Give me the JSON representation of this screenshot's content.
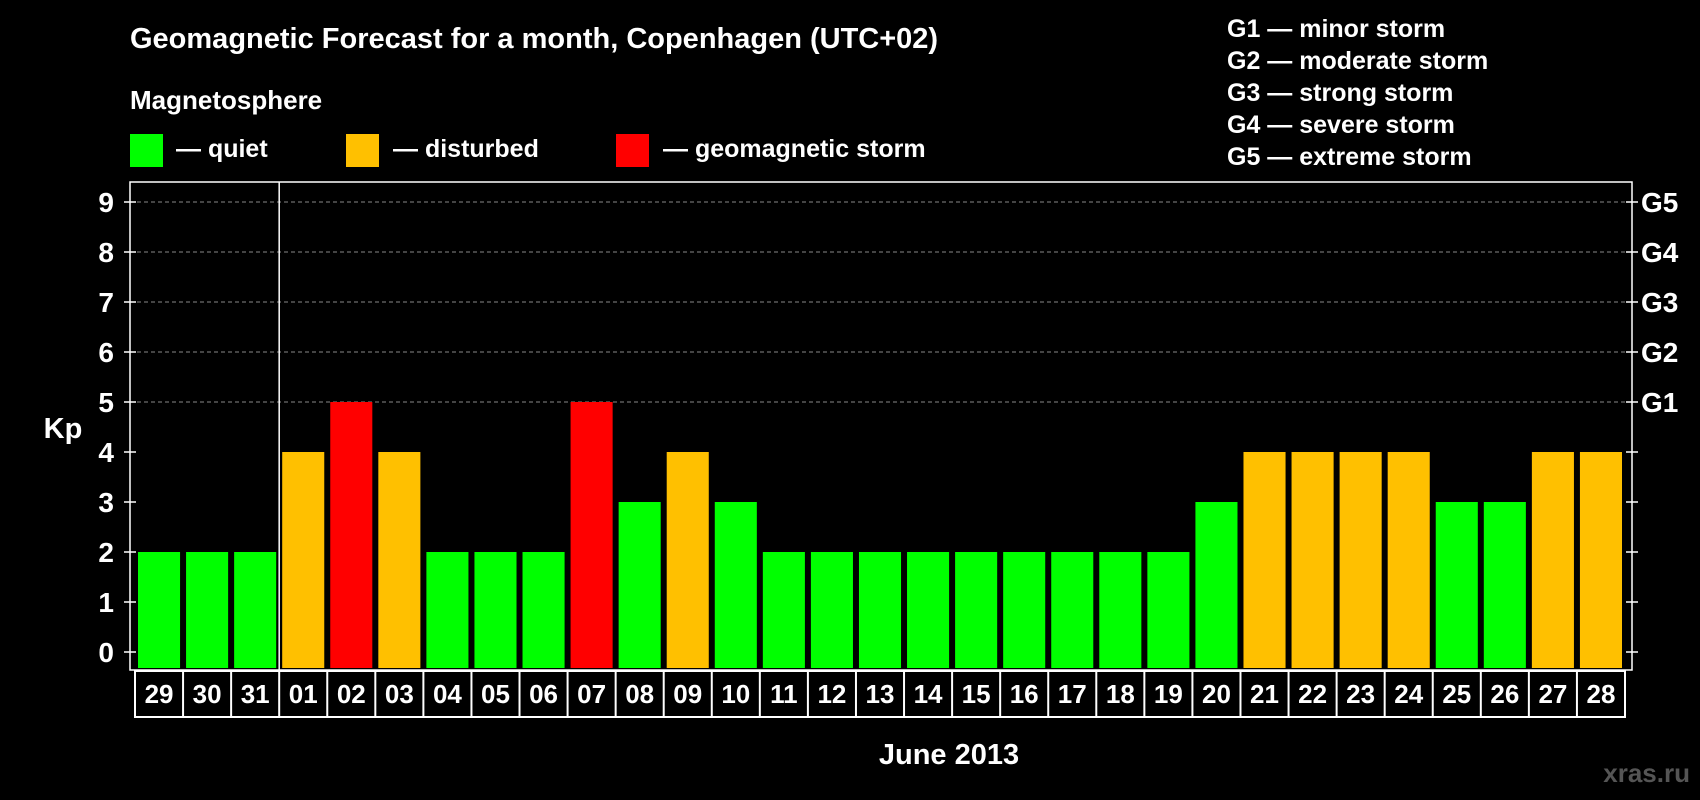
{
  "chart_data": {
    "type": "bar",
    "title": "Geomagnetic Forecast for a month, Copenhagen (UTC+02)",
    "subtitle": "Magnetosphere",
    "ylabel": "Kp",
    "xlabel": "June 2013",
    "ylim": [
      0,
      9
    ],
    "yticks": [
      "0",
      "1",
      "2",
      "3",
      "4",
      "5",
      "6",
      "7",
      "8",
      "9"
    ],
    "right_ticks": [
      {
        "value": 5,
        "label": "G1"
      },
      {
        "value": 6,
        "label": "G2"
      },
      {
        "value": 7,
        "label": "G3"
      },
      {
        "value": 8,
        "label": "G4"
      },
      {
        "value": 9,
        "label": "G5"
      }
    ],
    "grid": "dashed above Kp 5",
    "categories": [
      "29",
      "30",
      "31",
      "01",
      "02",
      "03",
      "04",
      "05",
      "06",
      "07",
      "08",
      "09",
      "10",
      "11",
      "12",
      "13",
      "14",
      "15",
      "16",
      "17",
      "18",
      "19",
      "20",
      "21",
      "22",
      "23",
      "24",
      "25",
      "26",
      "27",
      "28"
    ],
    "values": [
      2,
      2,
      2,
      4,
      5,
      4,
      2,
      2,
      2,
      5,
      3,
      4,
      3,
      2,
      2,
      2,
      2,
      2,
      2,
      2,
      2,
      2,
      3,
      4,
      4,
      4,
      4,
      3,
      3,
      4,
      4
    ],
    "status": [
      "quiet",
      "quiet",
      "quiet",
      "disturbed",
      "storm",
      "disturbed",
      "quiet",
      "quiet",
      "quiet",
      "storm",
      "quiet",
      "disturbed",
      "quiet",
      "quiet",
      "quiet",
      "quiet",
      "quiet",
      "quiet",
      "quiet",
      "quiet",
      "quiet",
      "quiet",
      "quiet",
      "disturbed",
      "disturbed",
      "disturbed",
      "disturbed",
      "quiet",
      "quiet",
      "disturbed",
      "disturbed"
    ],
    "month_separator_after": "31",
    "colors": {
      "quiet": "#00ff00",
      "disturbed": "#ffc000",
      "storm": "#ff0000"
    },
    "legend": [
      {
        "key": "quiet",
        "label": "— quiet"
      },
      {
        "key": "disturbed",
        "label": "— disturbed"
      },
      {
        "key": "storm",
        "label": "— geomagnetic storm"
      }
    ],
    "storm_scale": [
      "G1 — minor storm",
      "G2 — moderate storm",
      "G3 — strong storm",
      "G4 — severe storm",
      "G5 — extreme storm"
    ]
  },
  "watermark": "xras.ru"
}
